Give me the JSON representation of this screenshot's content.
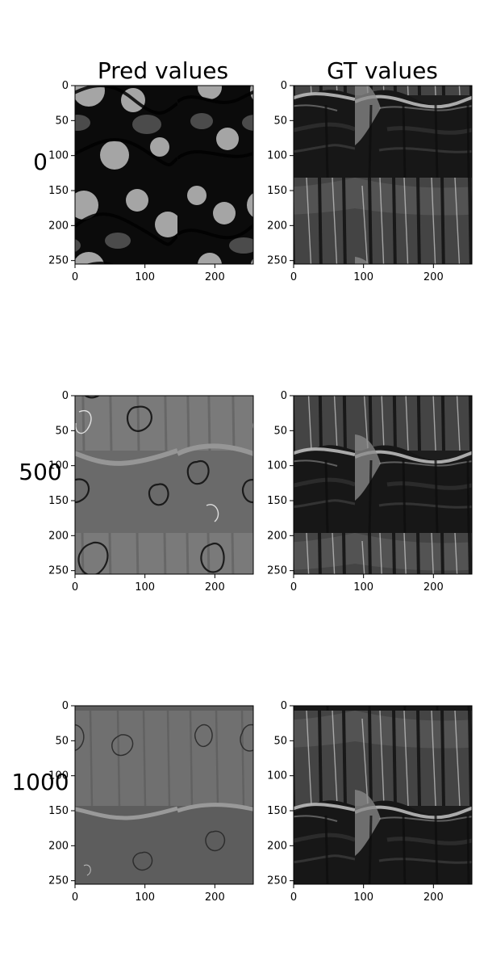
{
  "figure": {
    "columns": [
      {
        "title": "Pred values"
      },
      {
        "title": "GT values"
      }
    ]
  },
  "chart_data": {
    "type": "image_grid",
    "rows": [
      {
        "label": "0"
      },
      {
        "label": "500"
      },
      {
        "label": "1000"
      }
    ],
    "axes": {
      "x": {
        "ticks": [
          0,
          100,
          200
        ],
        "range": [
          0,
          255
        ]
      },
      "y": {
        "ticks": [
          0,
          50,
          100,
          150,
          200,
          250
        ],
        "range": [
          0,
          255
        ]
      }
    },
    "panels": [
      {
        "row": "0",
        "column": "Pred values",
        "content": "grayscale blotchy noise"
      },
      {
        "row": "0",
        "column": "GT values",
        "content": "forest river grayscale photo"
      },
      {
        "row": "500",
        "column": "Pred values",
        "content": "partially reconstructed forest scene with contour artifacts"
      },
      {
        "row": "500",
        "column": "GT values",
        "content": "forest river grayscale photo"
      },
      {
        "row": "1000",
        "column": "Pred values",
        "content": "mostly reconstructed forest scene with faint contour artifacts"
      },
      {
        "row": "1000",
        "column": "GT values",
        "content": "forest river grayscale photo"
      }
    ],
    "colormap": "gray"
  }
}
